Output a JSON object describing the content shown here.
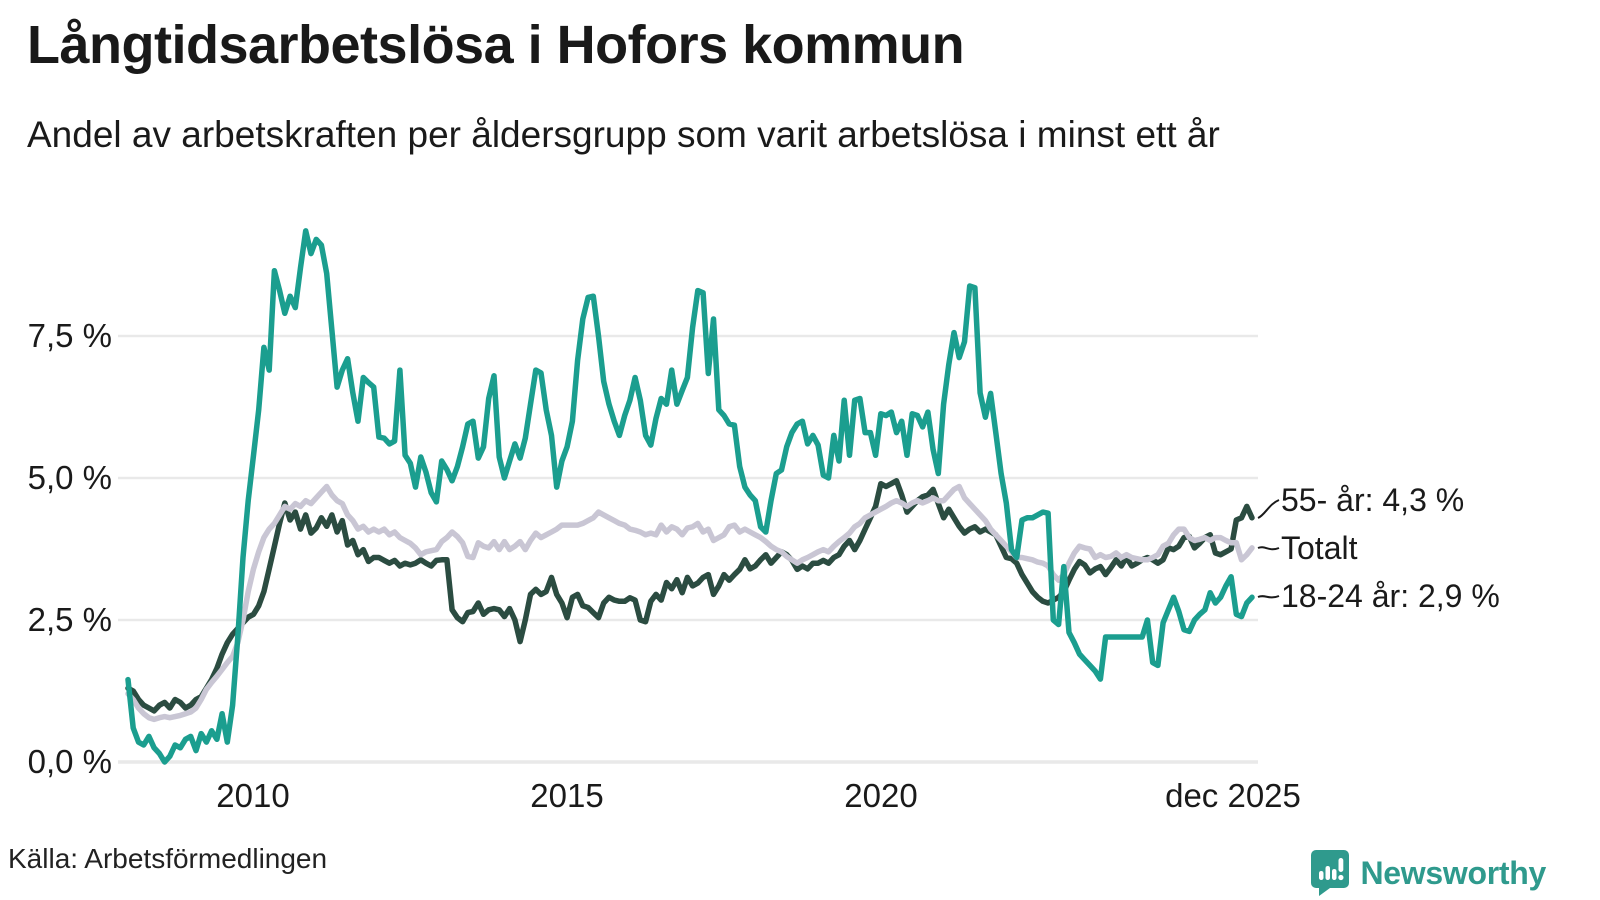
{
  "header": {
    "title": "Långtidsarbetslösa i Hofors kommun",
    "subtitle": "Andel av arbetskraften per åldersgrupp som varit arbetslösa i minst ett år"
  },
  "footer": {
    "source": "Källa: Arbetsförmedlingen",
    "brand": "Newsworthy"
  },
  "chart_data": {
    "type": "line",
    "title": "Långtidsarbetslösa i Hofors kommun",
    "subtitle": "Andel av arbetskraften per åldersgrupp som varit arbetslösa i minst ett år",
    "x_unit": "month",
    "x_start": "2008-01",
    "x_end": "2025-12",
    "ylim": [
      0,
      9.7
    ],
    "grid": true,
    "grid_color": "#e9e9e9",
    "legend_position": "right-end-labels",
    "y_ticks": [
      {
        "label": "0,0 %",
        "value": 0
      },
      {
        "label": "2,5 %",
        "value": 2.5
      },
      {
        "label": "5,0 %",
        "value": 5.0
      },
      {
        "label": "7,5 %",
        "value": 7.5
      }
    ],
    "x_ticks": [
      {
        "label": "2010",
        "month_index": 24
      },
      {
        "label": "2015",
        "month_index": 84
      },
      {
        "label": "2020",
        "month_index": 144
      },
      {
        "label": "dec 2025",
        "month_index": 215
      }
    ],
    "series": [
      {
        "name": "55- år",
        "end_label": "55- år: 4,3 %",
        "end_value": "4,3 %",
        "color": "#2b4c41",
        "values": [
          1.3,
          1.25,
          1.1,
          1.0,
          0.95,
          0.9,
          1.0,
          1.05,
          0.95,
          1.1,
          1.05,
          0.95,
          1.0,
          1.1,
          1.15,
          1.3,
          1.45,
          1.65,
          1.9,
          2.1,
          2.25,
          2.35,
          2.45,
          2.55,
          2.6,
          2.75,
          3.0,
          3.4,
          3.8,
          4.2,
          4.56,
          4.26,
          4.4,
          4.1,
          4.35,
          4.03,
          4.12,
          4.3,
          4.15,
          4.35,
          4.05,
          4.25,
          3.82,
          3.9,
          3.65,
          3.74,
          3.53,
          3.6,
          3.6,
          3.55,
          3.5,
          3.55,
          3.45,
          3.5,
          3.47,
          3.5,
          3.56,
          3.5,
          3.45,
          3.55,
          3.56,
          3.56,
          2.68,
          2.54,
          2.47,
          2.63,
          2.65,
          2.8,
          2.6,
          2.68,
          2.7,
          2.68,
          2.56,
          2.7,
          2.5,
          2.12,
          2.5,
          2.95,
          3.04,
          2.95,
          3.0,
          3.25,
          2.95,
          2.8,
          2.54,
          2.9,
          2.95,
          2.75,
          2.72,
          2.63,
          2.54,
          2.8,
          2.9,
          2.85,
          2.83,
          2.83,
          2.89,
          2.85,
          2.5,
          2.47,
          2.83,
          2.95,
          2.85,
          3.16,
          3.05,
          3.21,
          2.98,
          3.25,
          3.1,
          3.15,
          3.25,
          3.3,
          2.95,
          3.1,
          3.3,
          3.2,
          3.3,
          3.39,
          3.56,
          3.4,
          3.45,
          3.56,
          3.65,
          3.5,
          3.6,
          3.7,
          3.65,
          3.55,
          3.39,
          3.45,
          3.4,
          3.5,
          3.5,
          3.55,
          3.5,
          3.6,
          3.65,
          3.8,
          3.9,
          3.74,
          3.9,
          4.1,
          4.3,
          4.5,
          4.9,
          4.85,
          4.9,
          4.95,
          4.7,
          4.4,
          4.5,
          4.6,
          4.67,
          4.7,
          4.8,
          4.55,
          4.3,
          4.45,
          4.3,
          4.15,
          4.03,
          4.1,
          4.14,
          4.05,
          4.1,
          4.05,
          4.0,
          3.8,
          3.6,
          3.58,
          3.5,
          3.3,
          3.15,
          3.0,
          2.9,
          2.83,
          2.8,
          2.85,
          2.9,
          3.0,
          3.2,
          3.39,
          3.53,
          3.47,
          3.33,
          3.4,
          3.44,
          3.3,
          3.42,
          3.56,
          3.45,
          3.6,
          3.45,
          3.5,
          3.56,
          3.6,
          3.56,
          3.5,
          3.56,
          3.77,
          3.74,
          3.8,
          3.95,
          3.97,
          3.77,
          3.85,
          3.95,
          4.0,
          3.68,
          3.65,
          3.7,
          3.75,
          4.26,
          4.3,
          4.5,
          4.3
        ]
      },
      {
        "name": "Totalt",
        "end_label": "Totalt",
        "end_value": "3,8 %",
        "color": "#c9c6d4",
        "values": [
          1.2,
          1.1,
          0.95,
          0.85,
          0.78,
          0.75,
          0.78,
          0.8,
          0.78,
          0.8,
          0.82,
          0.85,
          0.88,
          0.95,
          1.1,
          1.28,
          1.4,
          1.51,
          1.63,
          1.75,
          1.86,
          2.1,
          2.5,
          3.0,
          3.4,
          3.7,
          3.95,
          4.1,
          4.2,
          4.35,
          4.5,
          4.45,
          4.55,
          4.5,
          4.6,
          4.55,
          4.65,
          4.75,
          4.85,
          4.7,
          4.6,
          4.55,
          4.35,
          4.25,
          4.1,
          4.15,
          4.05,
          4.1,
          4.05,
          4.1,
          4.0,
          4.05,
          3.95,
          3.9,
          3.85,
          3.77,
          3.65,
          3.7,
          3.72,
          3.74,
          3.88,
          3.95,
          4.05,
          3.97,
          3.86,
          3.62,
          3.6,
          3.86,
          3.8,
          3.77,
          3.88,
          3.74,
          3.88,
          3.74,
          3.8,
          3.88,
          3.74,
          3.9,
          4.03,
          3.95,
          4.0,
          4.05,
          4.1,
          4.17,
          4.17,
          4.17,
          4.17,
          4.2,
          4.25,
          4.3,
          4.4,
          4.35,
          4.3,
          4.25,
          4.2,
          4.17,
          4.1,
          4.08,
          4.05,
          4.0,
          4.03,
          4.0,
          4.17,
          4.05,
          4.14,
          4.1,
          4.0,
          4.12,
          4.14,
          4.2,
          4.05,
          4.1,
          3.9,
          3.95,
          4.0,
          4.14,
          4.17,
          4.05,
          4.1,
          4.05,
          4.0,
          3.95,
          3.88,
          3.8,
          3.74,
          3.7,
          3.62,
          3.56,
          3.5,
          3.56,
          3.6,
          3.65,
          3.7,
          3.74,
          3.7,
          3.8,
          3.88,
          3.95,
          4.03,
          4.14,
          4.2,
          4.3,
          4.35,
          4.4,
          4.45,
          4.5,
          4.56,
          4.6,
          4.56,
          4.5,
          4.56,
          4.6,
          4.56,
          4.6,
          4.65,
          4.6,
          4.6,
          4.7,
          4.8,
          4.85,
          4.65,
          4.55,
          4.45,
          4.35,
          4.25,
          4.1,
          4.0,
          3.9,
          3.8,
          3.7,
          3.6,
          3.6,
          3.58,
          3.56,
          3.52,
          3.5,
          3.45,
          3.3,
          3.2,
          3.3,
          3.5,
          3.68,
          3.8,
          3.77,
          3.75,
          3.6,
          3.65,
          3.6,
          3.62,
          3.68,
          3.6,
          3.65,
          3.6,
          3.58,
          3.56,
          3.56,
          3.6,
          3.65,
          3.8,
          3.85,
          4.0,
          4.1,
          4.1,
          3.95,
          3.9,
          3.92,
          3.95,
          3.9,
          3.95,
          3.95,
          3.9,
          3.86,
          3.86,
          3.56,
          3.65,
          3.77
        ]
      },
      {
        "name": "18-24 år",
        "end_label": "18-24 år: 2,9 %",
        "end_value": "2,9 %",
        "color": "#1b9e8f",
        "values": [
          1.45,
          0.6,
          0.35,
          0.3,
          0.45,
          0.25,
          0.15,
          0.0,
          0.1,
          0.3,
          0.25,
          0.4,
          0.45,
          0.2,
          0.5,
          0.35,
          0.55,
          0.4,
          0.85,
          0.35,
          1.0,
          2.2,
          3.6,
          4.6,
          5.4,
          6.2,
          7.3,
          6.9,
          8.65,
          8.3,
          7.9,
          8.2,
          8.0,
          8.7,
          9.35,
          8.95,
          9.2,
          9.1,
          8.6,
          7.6,
          6.6,
          6.9,
          7.1,
          6.5,
          6.0,
          6.77,
          6.68,
          6.6,
          5.72,
          5.7,
          5.6,
          5.65,
          6.9,
          5.4,
          5.26,
          4.84,
          5.37,
          5.1,
          4.74,
          4.58,
          5.3,
          5.15,
          4.95,
          5.2,
          5.55,
          5.95,
          6.0,
          5.35,
          5.55,
          6.4,
          6.8,
          5.37,
          5.0,
          5.3,
          5.6,
          5.35,
          5.7,
          6.3,
          6.9,
          6.85,
          6.2,
          5.75,
          4.84,
          5.3,
          5.55,
          6.0,
          7.07,
          7.8,
          8.18,
          8.2,
          7.5,
          6.7,
          6.3,
          6.0,
          5.75,
          6.1,
          6.37,
          6.77,
          6.37,
          5.75,
          5.58,
          6.05,
          6.4,
          6.3,
          6.9,
          6.3,
          6.54,
          6.77,
          7.65,
          8.3,
          8.26,
          6.84,
          7.8,
          6.2,
          6.1,
          5.95,
          5.93,
          5.2,
          4.84,
          4.7,
          4.6,
          4.14,
          4.05,
          4.6,
          5.08,
          5.14,
          5.55,
          5.8,
          5.95,
          6.0,
          5.6,
          5.75,
          5.58,
          5.05,
          5.0,
          5.75,
          5.3,
          6.37,
          5.4,
          6.37,
          6.4,
          5.8,
          5.8,
          5.4,
          6.13,
          6.1,
          6.16,
          5.8,
          6.0,
          5.4,
          6.13,
          6.1,
          5.9,
          6.16,
          5.5,
          5.08,
          6.3,
          7.0,
          7.56,
          7.12,
          7.4,
          8.38,
          8.35,
          6.5,
          6.07,
          6.49,
          5.8,
          5.08,
          4.56,
          3.74,
          3.6,
          4.26,
          4.3,
          4.3,
          4.35,
          4.4,
          4.38,
          2.5,
          2.42,
          3.44,
          2.28,
          2.1,
          1.9,
          1.8,
          1.7,
          1.6,
          1.46,
          2.2,
          2.2,
          2.2,
          2.2,
          2.2,
          2.2,
          2.2,
          2.2,
          2.5,
          1.75,
          1.7,
          2.45,
          2.68,
          2.9,
          2.65,
          2.33,
          2.3,
          2.5,
          2.6,
          2.68,
          2.98,
          2.8,
          2.9,
          3.1,
          3.26,
          2.6,
          2.56,
          2.8,
          2.9
        ]
      }
    ]
  }
}
